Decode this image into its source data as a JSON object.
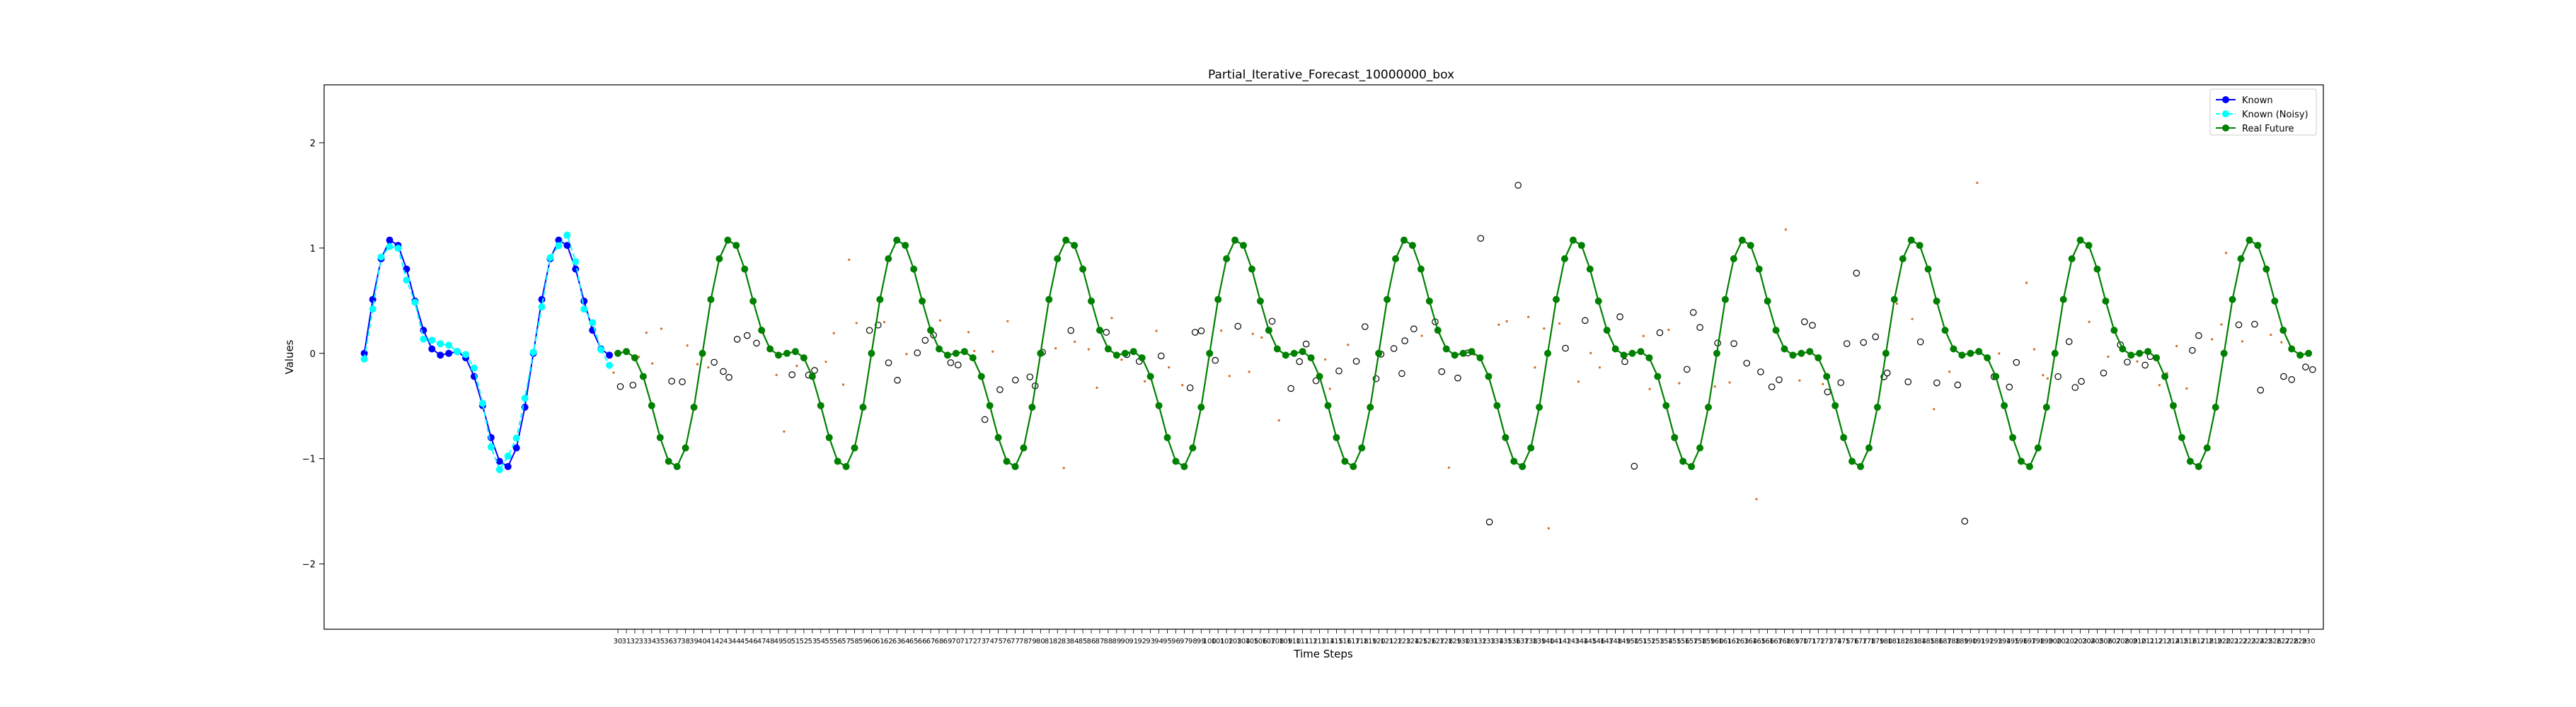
{
  "chart_data": {
    "type": "line",
    "title": "Partial_Iterative_Forecast_10000000_box",
    "xlabel": "Time Steps",
    "ylabel": "Values",
    "xlim": [
      -4.75,
      231.75
    ],
    "ylim": [
      -2.62,
      2.55
    ],
    "yticks": [
      -2,
      -1,
      0,
      1,
      2
    ],
    "grid": false,
    "legend_position": "upper right",
    "known_range": [
      0,
      29
    ],
    "future_range": [
      30,
      230
    ],
    "series": [
      {
        "name": "Known",
        "color": "#0000ff",
        "marker": "circle",
        "linestyle": "solid"
      },
      {
        "name": "Known (Noisy)",
        "color": "#00ffff",
        "marker": "circle",
        "linestyle": "dashed"
      },
      {
        "name": "Real Future",
        "color": "#008000",
        "marker": "circle",
        "linestyle": "solid"
      }
    ],
    "signal": {
      "period": 20,
      "terms": [
        {
          "amplitude": 0.8,
          "harmonic": 1
        },
        {
          "amplitude": 0.45,
          "harmonic": 2
        }
      ],
      "first_index": 0
    },
    "forecast_markers": {
      "edge_color": "#000000",
      "face_color": "#ffffff",
      "dot_color": "#d2691e"
    }
  }
}
